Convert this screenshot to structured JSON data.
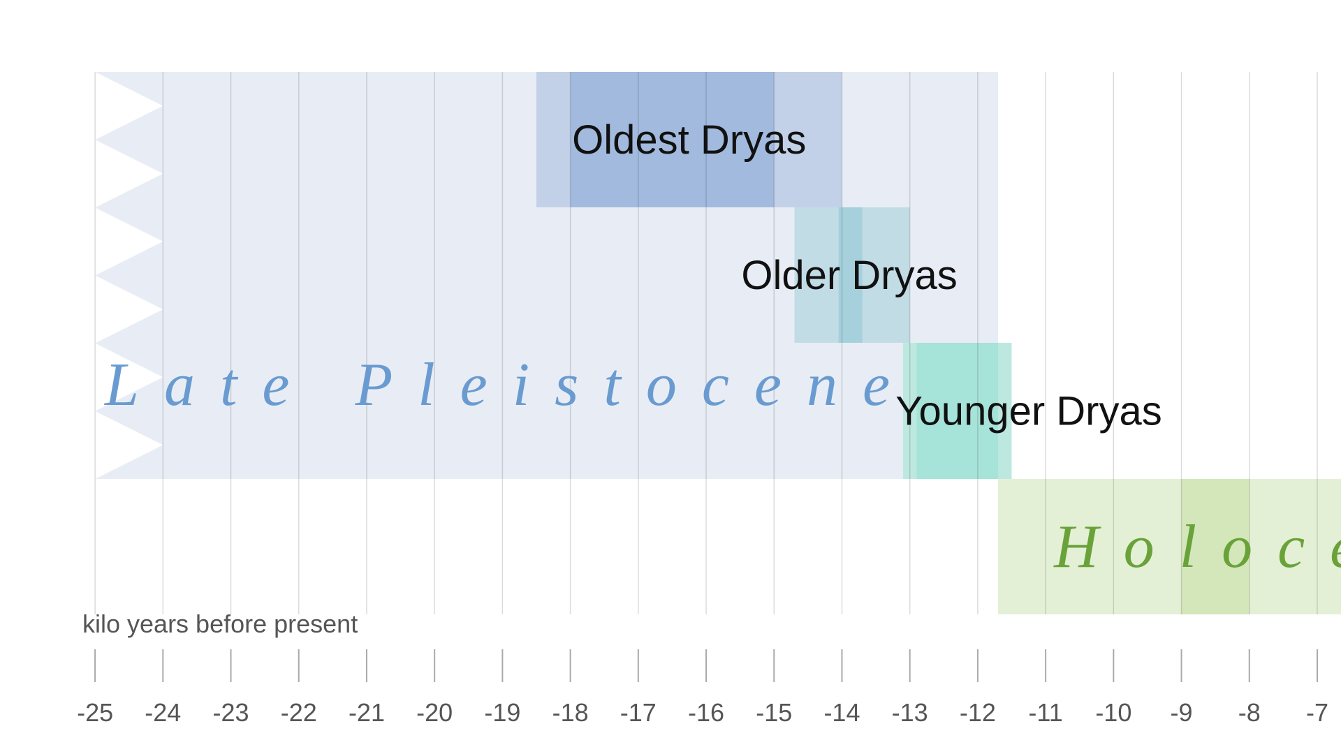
{
  "chart_data": {
    "type": "timeline",
    "xlabel": "kilo years before present",
    "xlim": [
      -26.4,
      -6.65
    ],
    "xticks": [
      -25,
      -24,
      -23,
      -22,
      -21,
      -20,
      -19,
      -18,
      -17,
      -16,
      -15,
      -14,
      -13,
      -12,
      -11,
      -10,
      -9,
      -8,
      -7
    ],
    "eras": [
      {
        "name": "Late Pleistocene",
        "start": -25,
        "end": -11.7,
        "color": "#e8edf5",
        "label_color": "#6a9bd0"
      },
      {
        "name": "Holocene",
        "start": -11.7,
        "end": -6.65,
        "core_start": -9,
        "core_end": -8,
        "color": "#e3f0d6",
        "core_color": "#d3e7ba",
        "label_color": "#6aa23a"
      }
    ],
    "periods": [
      {
        "name": "Oldest Dryas",
        "start": -18.5,
        "end": -14,
        "core_start": -18,
        "core_end": -15,
        "color": "#c3d1e8",
        "core_color": "#a2badd"
      },
      {
        "name": "Older Dryas",
        "start": -14.7,
        "end": -13,
        "core_start": -14.05,
        "core_end": -13.7,
        "color": "#c2dce6",
        "core_color": "#a5d0dc"
      },
      {
        "name": "Younger Dryas",
        "start": -13.1,
        "end": -11.5,
        "core_start": -12.9,
        "core_end": -11.7,
        "color": "#bde8e0",
        "core_color": "#a6e3d8"
      }
    ]
  }
}
